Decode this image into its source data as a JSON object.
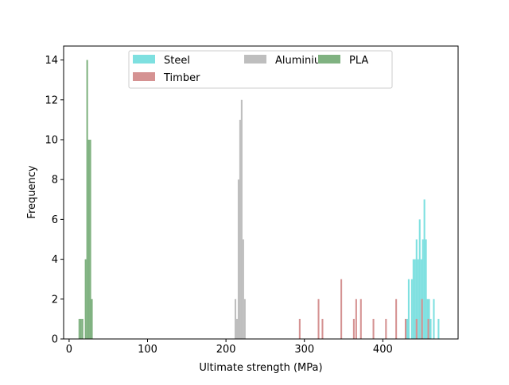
{
  "chart_data": {
    "type": "histogram",
    "xlabel": "Ultimate strength (MPa)",
    "ylabel": "Frequency",
    "xlim": [
      -7,
      496
    ],
    "ylim": [
      0,
      14.7
    ],
    "xticks": [
      0,
      100,
      200,
      300,
      400
    ],
    "yticks": [
      0,
      2,
      4,
      6,
      8,
      10,
      12,
      14
    ],
    "grid": false,
    "legend": {
      "placement": "upper center",
      "columns": 3
    },
    "series": [
      {
        "name": "Steel",
        "color": "#7ee0e0",
        "bin_width": 2.1,
        "bins": [
          [
            430,
            1
          ],
          [
            432,
            3
          ],
          [
            436,
            3
          ],
          [
            438,
            4
          ],
          [
            440,
            4
          ],
          [
            442,
            5
          ],
          [
            444,
            4
          ],
          [
            446,
            6
          ],
          [
            448,
            4
          ],
          [
            450,
            5
          ],
          [
            452,
            7
          ],
          [
            454,
            5
          ],
          [
            456,
            2
          ],
          [
            458,
            2
          ],
          [
            460,
            1
          ],
          [
            464,
            2
          ],
          [
            470,
            1
          ]
        ]
      },
      {
        "name": "Aluminium",
        "color": "#bebebe",
        "bin_width": 2.1,
        "bins": [
          [
            211,
            2
          ],
          [
            213,
            1
          ],
          [
            215,
            8
          ],
          [
            217,
            11
          ],
          [
            219,
            12
          ],
          [
            221,
            5
          ],
          [
            223,
            2
          ]
        ]
      },
      {
        "name": "PLA",
        "color": "#80b281",
        "bin_width": 2.1,
        "bins": [
          [
            12,
            1
          ],
          [
            14,
            1
          ],
          [
            16,
            1
          ],
          [
            20,
            4
          ],
          [
            22,
            14
          ],
          [
            24,
            10
          ],
          [
            26,
            10
          ],
          [
            28,
            2
          ]
        ]
      },
      {
        "name": "Timber",
        "color": "#d59292",
        "bin_width": 2.1,
        "bins": [
          [
            293,
            1
          ],
          [
            317,
            2
          ],
          [
            322,
            1
          ],
          [
            346,
            3
          ],
          [
            362,
            1
          ],
          [
            365,
            2
          ],
          [
            371,
            2
          ],
          [
            387,
            1
          ],
          [
            403,
            1
          ],
          [
            416,
            2
          ],
          [
            428,
            1
          ],
          [
            442,
            1
          ],
          [
            449,
            2
          ],
          [
            457,
            1
          ]
        ]
      }
    ]
  }
}
